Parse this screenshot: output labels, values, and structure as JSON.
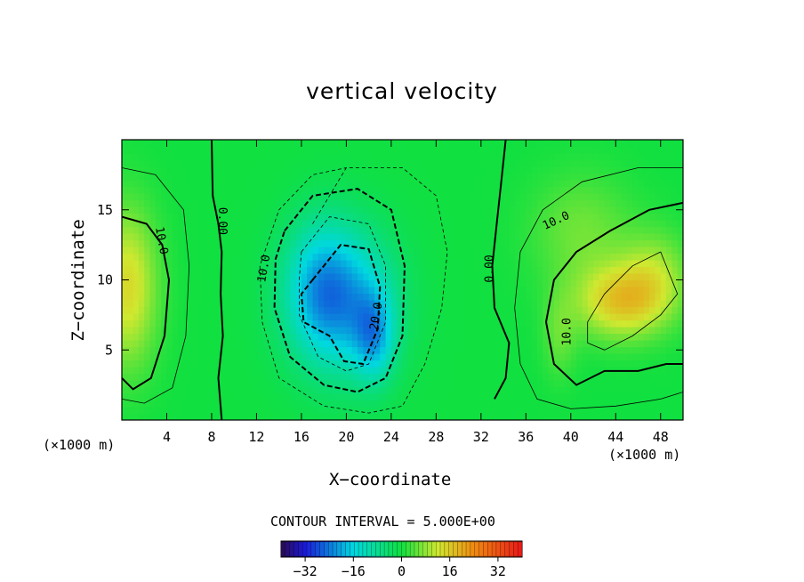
{
  "chart_data": {
    "type": "heatmap",
    "title": "vertical velocity",
    "xlabel": "X−coordinate",
    "ylabel": "Z−coordinate",
    "x_unit_label": "(×1000 m)",
    "xlim": [
      0,
      50
    ],
    "ylim": [
      0,
      20
    ],
    "x_ticks": [
      "4",
      "8",
      "12",
      "16",
      "20",
      "24",
      "28",
      "32",
      "36",
      "40",
      "44",
      "48"
    ],
    "x_tick_values": [
      4,
      8,
      12,
      16,
      20,
      24,
      28,
      32,
      36,
      40,
      44,
      48
    ],
    "y_ticks": [
      "5",
      "10",
      "15"
    ],
    "y_tick_values": [
      5,
      10,
      15
    ],
    "contour_interval_text": "CONTOUR INTERVAL = 5.000E+00",
    "contour_labels": [
      {
        "text": "10.0",
        "x": 3.5,
        "z": 12.8,
        "angle": 80
      },
      {
        "text": "0.00",
        "x": 8.9,
        "z": 14.2,
        "angle": 90
      },
      {
        "text": "10.0",
        "x": 12.7,
        "z": 10.8,
        "angle": -80
      },
      {
        "text": "20.0",
        "x": 22.7,
        "z": 7.4,
        "angle": -80
      },
      {
        "text": "0.00",
        "x": 32.8,
        "z": 10.8,
        "angle": -90
      },
      {
        "text": "10.0",
        "x": 38.7,
        "z": 14.2,
        "angle": -25
      },
      {
        "text": "10.0",
        "x": 39.7,
        "z": 6.3,
        "angle": -90
      }
    ],
    "colorbar": {
      "range": [
        -40,
        40
      ],
      "tick_labels": [
        "−32",
        "−16",
        "0",
        "16",
        "32"
      ],
      "tick_values": [
        -32,
        -16,
        0,
        16,
        32
      ]
    },
    "features": [
      {
        "name": "left-updraft",
        "x": 1.5,
        "z": 9,
        "peak": 12
      },
      {
        "name": "central-downdraft",
        "x": 20,
        "z": 8,
        "peak": -30
      },
      {
        "name": "right-updraft",
        "x": 44,
        "z": 8,
        "peak": 14
      }
    ]
  }
}
